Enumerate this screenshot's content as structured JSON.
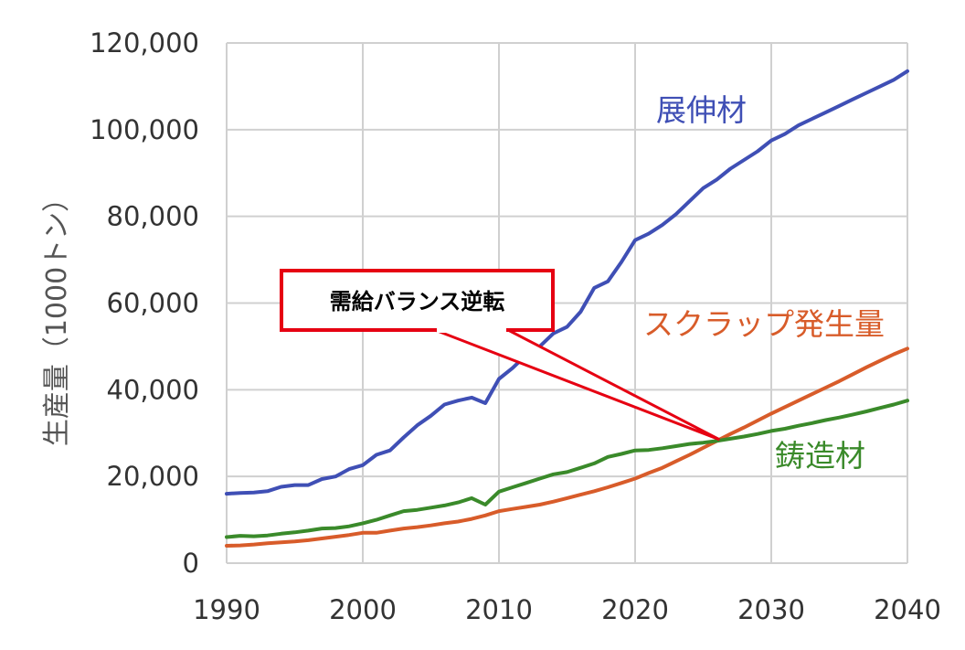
{
  "chart_data": {
    "type": "line",
    "title": "",
    "xlabel": "",
    "ylabel": "生産量（1000トン）",
    "xlim": [
      1990,
      2040
    ],
    "ylim": [
      0,
      120000
    ],
    "x_ticks": [
      "1990",
      "2000",
      "2010",
      "2020",
      "2030",
      "2040"
    ],
    "y_ticks": [
      "0",
      "20,000",
      "40,000",
      "60,000",
      "80,000",
      "100,000",
      "120,000"
    ],
    "grid": true,
    "legend": "none",
    "series": [
      {
        "name": "展伸材",
        "color": "#3f4fb5",
        "x": [
          1990,
          1991,
          1992,
          1993,
          1994,
          1995,
          1996,
          1997,
          1998,
          1999,
          2000,
          2001,
          2002,
          2003,
          2004,
          2005,
          2006,
          2007,
          2008,
          2009,
          2010,
          2011,
          2012,
          2013,
          2014,
          2015,
          2016,
          2017,
          2018,
          2019,
          2020,
          2021,
          2022,
          2023,
          2024,
          2025,
          2026,
          2027,
          2028,
          2029,
          2030,
          2031,
          2032,
          2033,
          2034,
          2035,
          2036,
          2037,
          2038,
          2039,
          2040
        ],
        "values": [
          16000,
          16200,
          16300,
          16600,
          17600,
          18000,
          18000,
          19400,
          20000,
          21700,
          22600,
          25000,
          26000,
          29000,
          31800,
          34000,
          36600,
          37500,
          38200,
          36900,
          42500,
          45000,
          48000,
          50000,
          53000,
          54500,
          58000,
          63500,
          65000,
          69500,
          74500,
          76000,
          78000,
          80500,
          83500,
          86500,
          88500,
          91000,
          93000,
          95000,
          97500,
          99000,
          101000,
          102500,
          104000,
          105500,
          107000,
          108500,
          110000,
          111500,
          113500
        ]
      },
      {
        "name": "スクラップ発生量",
        "color": "#d85c2a",
        "x": [
          1990,
          1991,
          1992,
          1993,
          1994,
          1995,
          1996,
          1997,
          1998,
          1999,
          2000,
          2001,
          2002,
          2003,
          2004,
          2005,
          2006,
          2007,
          2008,
          2009,
          2010,
          2011,
          2012,
          2013,
          2014,
          2015,
          2016,
          2017,
          2018,
          2019,
          2020,
          2021,
          2022,
          2023,
          2024,
          2025,
          2026,
          2027,
          2028,
          2029,
          2030,
          2031,
          2032,
          2033,
          2034,
          2035,
          2036,
          2037,
          2038,
          2039,
          2040
        ],
        "values": [
          4000,
          4100,
          4300,
          4600,
          4800,
          5000,
          5300,
          5700,
          6100,
          6500,
          7000,
          7000,
          7500,
          8000,
          8300,
          8700,
          9200,
          9600,
          10200,
          11000,
          12000,
          12500,
          13000,
          13500,
          14200,
          15000,
          15800,
          16600,
          17500,
          18500,
          19500,
          20800,
          22000,
          23500,
          25000,
          26600,
          28200,
          29800,
          31300,
          32900,
          34500,
          36000,
          37500,
          39000,
          40500,
          42000,
          43600,
          45200,
          46700,
          48200,
          49500
        ]
      },
      {
        "name": "鋳造材",
        "color": "#3a8a2a",
        "x": [
          1990,
          1991,
          1992,
          1993,
          1994,
          1995,
          1996,
          1997,
          1998,
          1999,
          2000,
          2001,
          2002,
          2003,
          2004,
          2005,
          2006,
          2007,
          2008,
          2009,
          2010,
          2011,
          2012,
          2013,
          2014,
          2015,
          2016,
          2017,
          2018,
          2019,
          2020,
          2021,
          2022,
          2023,
          2024,
          2025,
          2026,
          2027,
          2028,
          2029,
          2030,
          2031,
          2032,
          2033,
          2034,
          2035,
          2036,
          2037,
          2038,
          2039,
          2040
        ],
        "values": [
          6000,
          6300,
          6200,
          6400,
          6800,
          7100,
          7500,
          8000,
          8100,
          8500,
          9200,
          10000,
          11000,
          12000,
          12300,
          12800,
          13300,
          14000,
          15000,
          13500,
          16500,
          17500,
          18500,
          19500,
          20500,
          21000,
          22000,
          23000,
          24500,
          25200,
          26000,
          26100,
          26500,
          27000,
          27500,
          27800,
          28200,
          28700,
          29200,
          29800,
          30500,
          31000,
          31700,
          32300,
          33000,
          33600,
          34300,
          35000,
          35800,
          36600,
          37500
        ]
      }
    ],
    "annotations": [
      {
        "text": "需給バランス逆転",
        "type": "callout",
        "point_x": 2026.2,
        "point_y": 28500
      }
    ]
  }
}
